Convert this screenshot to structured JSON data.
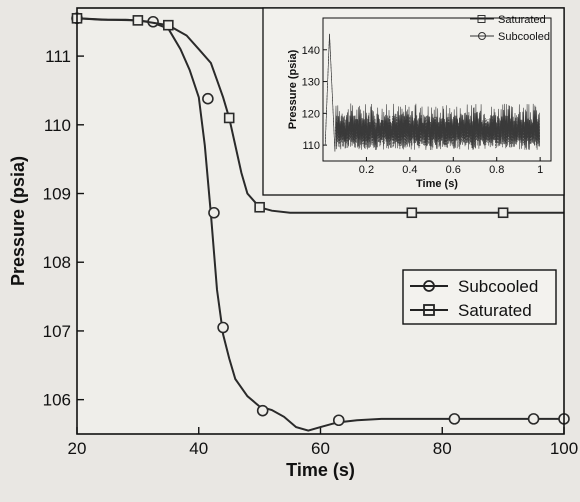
{
  "chart_data": [
    {
      "type": "line",
      "xlabel": "Time (s)",
      "ylabel": "Pressure (psia)",
      "xlim": [
        20,
        100
      ],
      "ylim": [
        105.5,
        111.7
      ],
      "xticks": [
        20,
        40,
        60,
        80,
        100
      ],
      "yticks": [
        106,
        107,
        108,
        109,
        110,
        111
      ],
      "grid": false,
      "legend": "center-right",
      "series": [
        {
          "name": "Subcooled",
          "marker": "circle",
          "x": [
            20,
            24,
            28,
            32,
            35,
            37,
            38.5,
            40,
            41,
            42,
            43,
            44,
            45,
            46,
            48,
            50,
            52,
            54,
            56,
            58,
            60,
            62,
            64,
            66,
            70,
            75,
            80,
            85,
            90,
            95,
            100
          ],
          "y": [
            111.55,
            111.53,
            111.53,
            111.5,
            111.4,
            111.1,
            110.8,
            110.4,
            109.7,
            108.7,
            107.6,
            106.95,
            106.6,
            106.3,
            106.05,
            105.9,
            105.85,
            105.75,
            105.6,
            105.55,
            105.6,
            105.65,
            105.68,
            105.7,
            105.72,
            105.72,
            105.72,
            105.72,
            105.72,
            105.72,
            105.72
          ],
          "marker_x": [
            20,
            32.5,
            41.5,
            42.5,
            44,
            50.5,
            63,
            82,
            95,
            100
          ],
          "marker_y": [
            111.55,
            111.5,
            110.38,
            108.72,
            107.05,
            105.84,
            105.7,
            105.72,
            105.72,
            105.72
          ]
        },
        {
          "name": "Saturated",
          "marker": "square",
          "x": [
            20,
            25,
            30,
            35,
            38,
            40,
            42,
            43,
            44,
            45,
            46,
            47,
            48,
            50,
            52,
            55,
            60,
            65,
            70,
            80,
            90,
            100
          ],
          "y": [
            111.55,
            111.53,
            111.52,
            111.45,
            111.3,
            111.1,
            110.9,
            110.65,
            110.4,
            110.1,
            109.7,
            109.3,
            109.0,
            108.8,
            108.75,
            108.72,
            108.72,
            108.72,
            108.72,
            108.72,
            108.72,
            108.72
          ],
          "marker_x": [
            20,
            30,
            35,
            45,
            50,
            75,
            90
          ],
          "marker_y": [
            111.55,
            111.52,
            111.45,
            110.1,
            108.8,
            108.72,
            108.72
          ]
        }
      ]
    },
    {
      "type": "line",
      "inset": true,
      "xlabel": "Time (s)",
      "ylabel": "Pressure (psia)",
      "xlim": [
        0,
        1.05
      ],
      "ylim": [
        105,
        150
      ],
      "xticks": [
        0.2,
        0.4,
        0.6,
        0.8,
        1
      ],
      "yticks": [
        110,
        120,
        130,
        140
      ],
      "legend": "top-right",
      "series": [
        {
          "name": "Saturated",
          "marker": "square"
        },
        {
          "name": "Subcooled",
          "marker": "circle"
        }
      ]
    }
  ]
}
